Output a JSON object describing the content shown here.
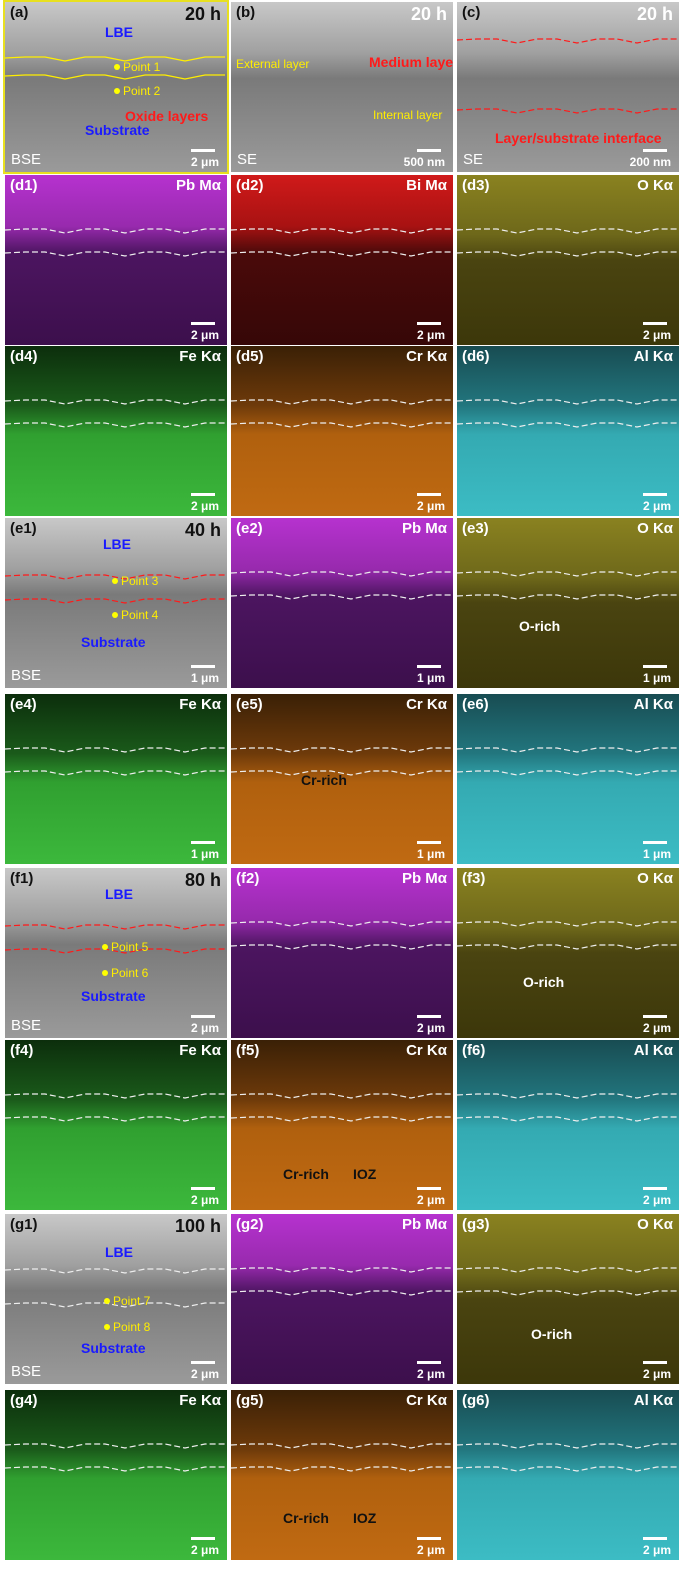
{
  "panels": [
    {
      "label": "(a)",
      "tag": "20 h",
      "mode": "BSE",
      "scale": "2 μm",
      "notes": [
        "LBE",
        "Point 1",
        "Point 2",
        "Oxide layers",
        "Substrate"
      ]
    },
    {
      "label": "(b)",
      "tag": "20 h",
      "mode": "SE",
      "scale": "500 nm",
      "notes": [
        "External layer",
        "Medium layer",
        "Internal layer"
      ]
    },
    {
      "label": "(c)",
      "tag": "20 h",
      "mode": "SE",
      "scale": "200 nm",
      "notes": [
        "Layer/substrate interface"
      ]
    },
    {
      "label": "(d1)",
      "tag": "Pb Mα",
      "scale": "2 μm",
      "notes": []
    },
    {
      "label": "(d2)",
      "tag": "Bi Mα",
      "scale": "2 μm",
      "notes": []
    },
    {
      "label": "(d3)",
      "tag": "O Kα",
      "scale": "2 μm",
      "notes": []
    },
    {
      "label": "(d4)",
      "tag": "Fe Kα",
      "scale": "2 μm",
      "notes": []
    },
    {
      "label": "(d5)",
      "tag": "Cr Kα",
      "scale": "2 μm",
      "notes": []
    },
    {
      "label": "(d6)",
      "tag": "Al Kα",
      "scale": "2 μm",
      "notes": []
    },
    {
      "label": "(e1)",
      "tag": "40 h",
      "mode": "BSE",
      "scale": "1 μm",
      "notes": [
        "LBE",
        "Point 3",
        "Point 4",
        "Substrate"
      ]
    },
    {
      "label": "(e2)",
      "tag": "Pb Mα",
      "scale": "1 μm",
      "notes": []
    },
    {
      "label": "(e3)",
      "tag": "O Kα",
      "scale": "1 μm",
      "notes": [
        "O-rich"
      ]
    },
    {
      "label": "(e4)",
      "tag": "Fe Kα",
      "scale": "1 μm",
      "notes": []
    },
    {
      "label": "(e5)",
      "tag": "Cr Kα",
      "scale": "1 μm",
      "notes": [
        "Cr-rich"
      ]
    },
    {
      "label": "(e6)",
      "tag": "Al Kα",
      "scale": "1 μm",
      "notes": []
    },
    {
      "label": "(f1)",
      "tag": "80 h",
      "mode": "BSE",
      "scale": "2 μm",
      "notes": [
        "LBE",
        "Point 5",
        "Point 6",
        "Substrate"
      ]
    },
    {
      "label": "(f2)",
      "tag": "Pb Mα",
      "scale": "2 μm",
      "notes": []
    },
    {
      "label": "(f3)",
      "tag": "O Kα",
      "scale": "2 μm",
      "notes": [
        "O-rich"
      ]
    },
    {
      "label": "(f4)",
      "tag": "Fe Kα",
      "scale": "2 μm",
      "notes": []
    },
    {
      "label": "(f5)",
      "tag": "Cr Kα",
      "scale": "2 μm",
      "notes": [
        "Cr-rich",
        "IOZ"
      ]
    },
    {
      "label": "(f6)",
      "tag": "Al Kα",
      "scale": "2 μm",
      "notes": []
    },
    {
      "label": "(g1)",
      "tag": "100 h",
      "mode": "BSE",
      "scale": "2 μm",
      "notes": [
        "LBE",
        "Point 7",
        "Point 8",
        "Substrate"
      ]
    },
    {
      "label": "(g2)",
      "tag": "Pb Mα",
      "scale": "2 μm",
      "notes": []
    },
    {
      "label": "(g3)",
      "tag": "O Kα",
      "scale": "2 μm",
      "notes": [
        "O-rich"
      ]
    },
    {
      "label": "(g4)",
      "tag": "Fe Kα",
      "scale": "2 μm",
      "notes": []
    },
    {
      "label": "(g5)",
      "tag": "Cr Kα",
      "scale": "2 μm",
      "notes": [
        "Cr-rich",
        "IOZ"
      ]
    },
    {
      "label": "(g6)",
      "tag": "Al Kα",
      "scale": "2 μm",
      "notes": []
    }
  ]
}
